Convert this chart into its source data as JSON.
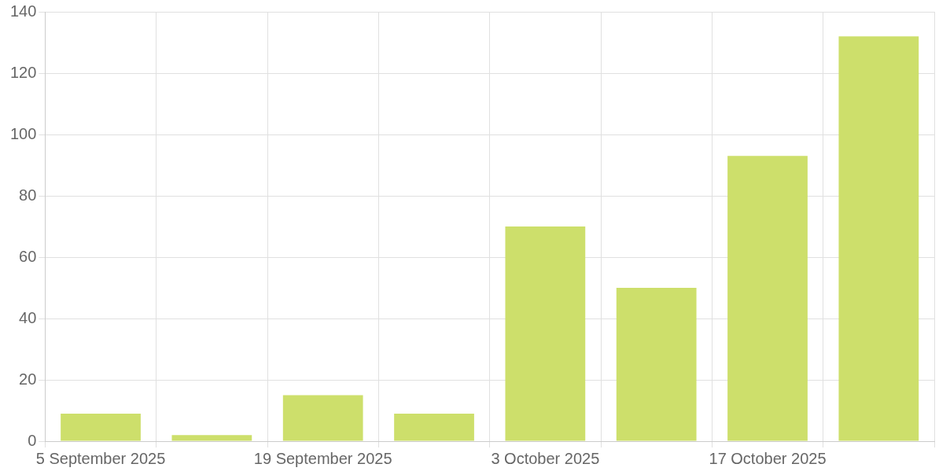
{
  "chart_data": {
    "type": "bar",
    "categories": [
      "5 September 2025",
      null,
      "19 September 2025",
      null,
      "3 October 2025",
      null,
      "17 October 2025",
      null
    ],
    "values": [
      9,
      2,
      15,
      9,
      70,
      50,
      93,
      132
    ],
    "color": "#cddf6b",
    "ylim": [
      0,
      140
    ],
    "yticks": [
      0,
      20,
      40,
      60,
      80,
      100,
      120,
      140
    ],
    "grid": true,
    "legend": false
  }
}
